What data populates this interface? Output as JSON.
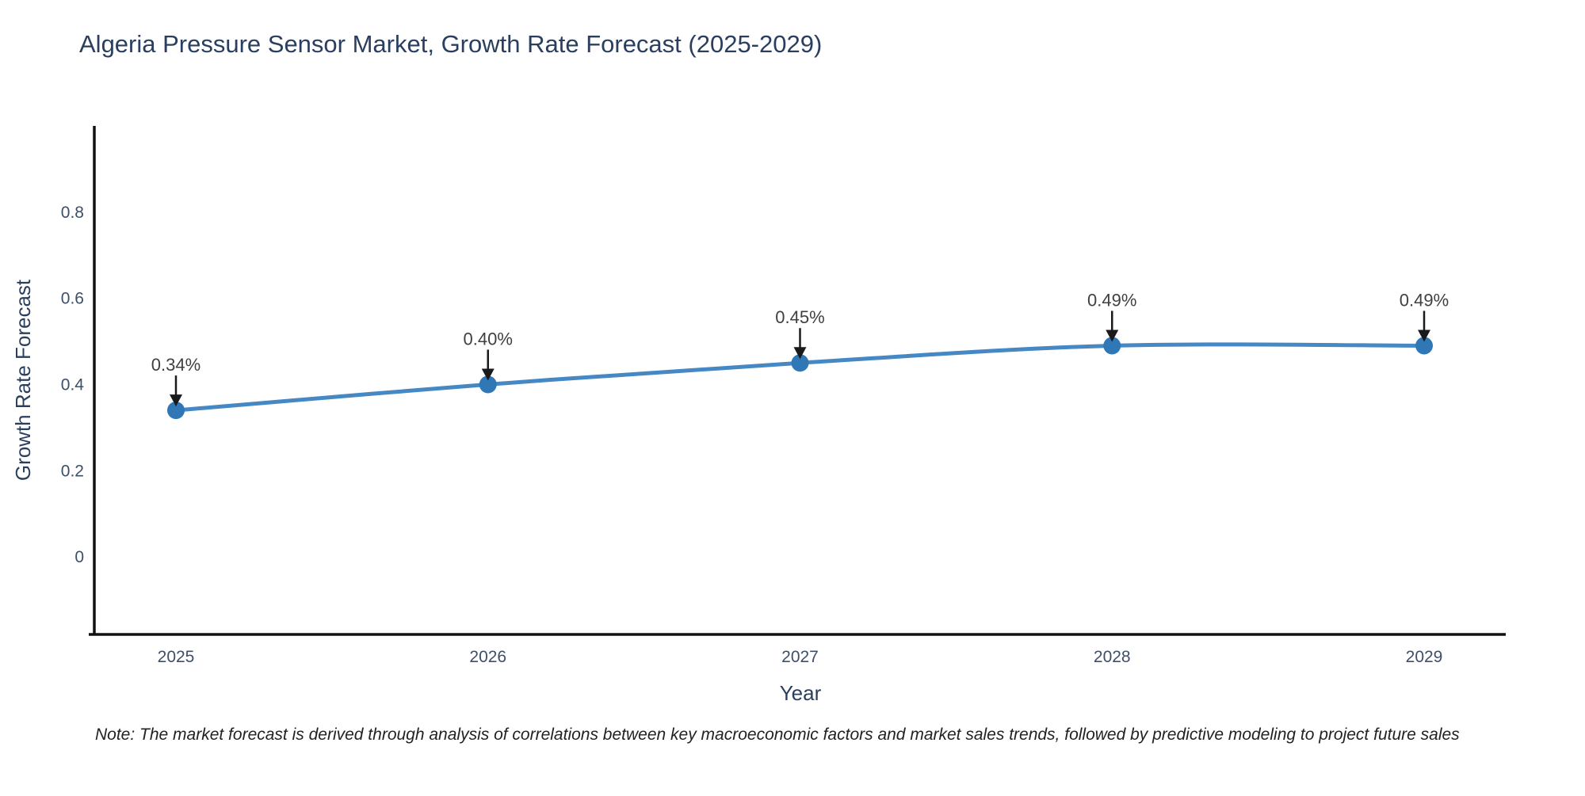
{
  "title": "Algeria Pressure Sensor Market, Growth Rate Forecast (2025-2029)",
  "note": "Note: The market forecast is derived through analysis of correlations between key macroeconomic factors and market sales trends, followed by predictive modeling to project future sales",
  "chart_data": {
    "type": "line",
    "title": "Algeria Pressure Sensor Market, Growth Rate Forecast (2025-2029)",
    "categories": [
      "2025",
      "2026",
      "2027",
      "2028",
      "2029"
    ],
    "series": [
      {
        "name": "Growth Rate Forecast",
        "values": [
          0.34,
          0.4,
          0.45,
          0.49,
          0.49
        ],
        "point_labels": [
          "0.34%",
          "0.40%",
          "0.45%",
          "0.49%",
          "0.49%"
        ]
      }
    ],
    "xlabel": "Year",
    "ylabel": "Growth Rate Forecast",
    "yticks": [
      0,
      0.2,
      0.4,
      0.6,
      0.8
    ],
    "ylim": [
      -0.18,
      1.0
    ],
    "grid": false,
    "legend_position": "none",
    "line_shape": "spline",
    "colors": {
      "line": "#4688c3",
      "marker": "#3077b5",
      "axis_line": "#111111",
      "annotation_arrow": "#1a1a1a",
      "annotation_text": "#404040",
      "title_text": "#2a3f5f"
    }
  }
}
